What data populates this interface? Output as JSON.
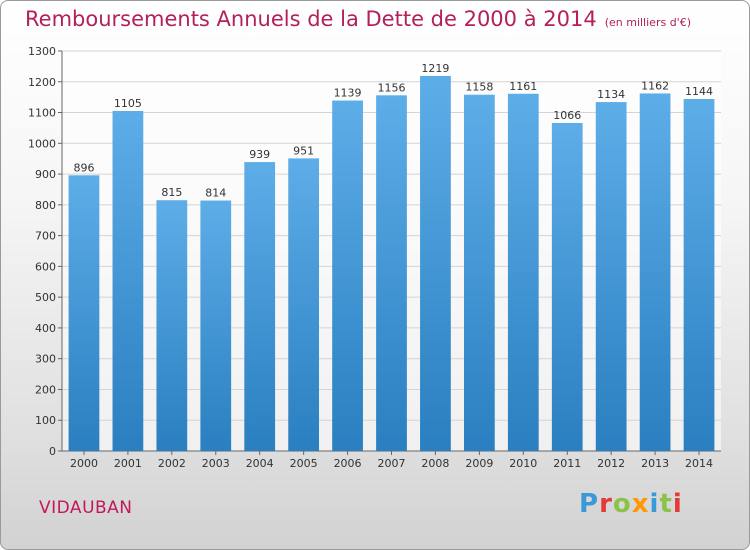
{
  "title": "Remboursements Annuels de la Dette de 2000 à 2014",
  "subtitle": "(en milliers d'€)",
  "town": "VIDAUBAN",
  "logo": [
    "P",
    "r",
    "o",
    "x",
    "i",
    "t",
    "i"
  ],
  "colors": {
    "title": "#b3205c",
    "bar_light": "#5dade8",
    "bar_dark": "#2a7fc0",
    "grid": "#d4d4d4"
  },
  "chart_data": {
    "type": "bar",
    "title": "Remboursements Annuels de la Dette de 2000 à 2014",
    "subtitle": "(en milliers d'€)",
    "categories": [
      "2000",
      "2001",
      "2002",
      "2003",
      "2004",
      "2005",
      "2006",
      "2007",
      "2008",
      "2009",
      "2010",
      "2011",
      "2012",
      "2013",
      "2014"
    ],
    "values": [
      896,
      1105,
      815,
      814,
      939,
      951,
      1139,
      1156,
      1219,
      1158,
      1161,
      1066,
      1134,
      1162,
      1144
    ],
    "ylim": [
      0,
      1300
    ],
    "yticks": [
      0,
      100,
      200,
      300,
      400,
      500,
      600,
      700,
      800,
      900,
      1000,
      1100,
      1200,
      1300
    ],
    "xlabel": "",
    "ylabel": "",
    "grid": true,
    "legend": "none"
  }
}
